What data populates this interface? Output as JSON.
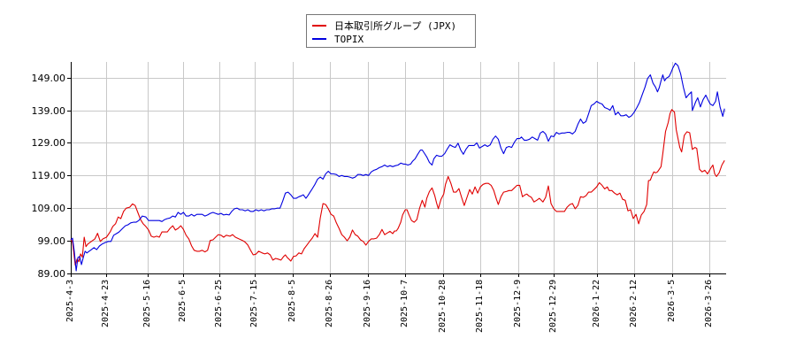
{
  "chart_data": {
    "type": "line",
    "title": "",
    "xlabel": "",
    "ylabel": "",
    "ylim": [
      89,
      153
    ],
    "grid": true,
    "legend_position": "top-center",
    "y_ticks": [
      "149.00",
      "139.00",
      "129.00",
      "119.00",
      "109.00",
      "99.00",
      "89.00"
    ],
    "y_tick_values": [
      149,
      139,
      129,
      119,
      109,
      99,
      89
    ],
    "x_ticks": [
      "2025-4-3",
      "2025-4-23",
      "2025-5-16",
      "2025-6-5",
      "2025-6-25",
      "2025-7-15",
      "2025-8-5",
      "2025-8-26",
      "2025-9-16",
      "2025-10-7",
      "2025-10-28",
      "2025-11-18",
      "2025-12-9",
      "2025-12-29",
      "2026-1-22",
      "2026-2-12",
      "2026-3-5",
      "2026-3-26"
    ],
    "x_tick_days": [
      0,
      20,
      43,
      63,
      83,
      103,
      124,
      145,
      166,
      187,
      208,
      229,
      250,
      270,
      294,
      315,
      336,
      357
    ],
    "x_range_days": [
      0,
      366
    ],
    "series": [
      {
        "name": "日本取引所グループ (JPX)",
        "color": "#e00000",
        "days": [
          0,
          1,
          2.5,
          3.5,
          4.5,
          5.5,
          6.5,
          7.5,
          8.5,
          9.5,
          11.5,
          13.5,
          15,
          16.5,
          18,
          20,
          22,
          23.5,
          25,
          26.5,
          28,
          29.5,
          31,
          33,
          34.5,
          36,
          37.5,
          39,
          40.5,
          42,
          43.5,
          45,
          46.5,
          48,
          49.5,
          51,
          52.5,
          54,
          55.5,
          57,
          58.5,
          60,
          61.5,
          63,
          64.5,
          66,
          67.5,
          69,
          70.5,
          72,
          73.5,
          75,
          76.5,
          78,
          79.5,
          81,
          82.5,
          84,
          85.5,
          87,
          89,
          90.5,
          92,
          94,
          96,
          97.5,
          99,
          100.5,
          102,
          103.5,
          105,
          107,
          108.5,
          110,
          111.5,
          113,
          114.5,
          116,
          117.5,
          119,
          120,
          121,
          122,
          123,
          124.5,
          126,
          127.5,
          129,
          130.5,
          132,
          133.5,
          135,
          136.5,
          138,
          139.5,
          141,
          142.5,
          144,
          145.5,
          147,
          148.5,
          150,
          151.5,
          153,
          154.5,
          156,
          157.5,
          159,
          160.5,
          162,
          163.5,
          165,
          166.5,
          168,
          169.5,
          171,
          172.5,
          174,
          175.5,
          177,
          178.5,
          180,
          181,
          182,
          183,
          184.5,
          185.5,
          187,
          188,
          189,
          190.5,
          192,
          193.5,
          195,
          196.5,
          198,
          199,
          200.5,
          202,
          203.5,
          204.5,
          205.5,
          207,
          208.5,
          209.5,
          211,
          212.5,
          214,
          215.5,
          217,
          218.5,
          220,
          221.5,
          223,
          224.5,
          226,
          227.5,
          229,
          230.5,
          232,
          233.5,
          235,
          236.5,
          238,
          239,
          240.5,
          242,
          243.5,
          245,
          246.5,
          248,
          249.5,
          251,
          252.5,
          254,
          255,
          256,
          257.5,
          259,
          260.5,
          262,
          264,
          265.5,
          267,
          268.5,
          270,
          271.5,
          273,
          274.5,
          276,
          277.5,
          279,
          280.5,
          282,
          283.5,
          285,
          286.5,
          288,
          289.5,
          291,
          292.5,
          294,
          295.5,
          297,
          298.5,
          300,
          301,
          302.5,
          304,
          305.5,
          307,
          308.5,
          310,
          311.5,
          313,
          314.5,
          316,
          317.5,
          319,
          320.5,
          322,
          323,
          324,
          325,
          326,
          327,
          328,
          329,
          330,
          331,
          332.5,
          334,
          335,
          336,
          337.5,
          338.5,
          340.5,
          341.5,
          343,
          344.5,
          346,
          347.5,
          349,
          350,
          351.5,
          353,
          354.5,
          356,
          358,
          359,
          360,
          361,
          362.5,
          364,
          365.5
        ],
        "values": [
          99.6,
          98.6,
          91.5,
          93.4,
          92.6,
          95.0,
          94.0,
          100.1,
          97.2,
          98.0,
          98.8,
          99.6,
          101.3,
          98.8,
          99.6,
          100.1,
          101.7,
          103.4,
          104.2,
          106.3,
          105.8,
          108.0,
          109.0,
          109.3,
          110.3,
          109.8,
          107.7,
          105.5,
          104.2,
          103.4,
          102.3,
          100.4,
          100.1,
          100.4,
          100.1,
          101.7,
          101.7,
          101.7,
          102.8,
          103.6,
          102.3,
          102.8,
          103.6,
          102.5,
          100.7,
          99.6,
          97.5,
          96.1,
          95.8,
          95.8,
          96.1,
          95.6,
          96.1,
          99.1,
          99.3,
          100.1,
          100.9,
          100.7,
          100.1,
          100.7,
          100.4,
          100.9,
          100.1,
          99.6,
          99.1,
          98.6,
          97.7,
          96.1,
          94.7,
          94.9,
          95.8,
          95.3,
          95.0,
          95.3,
          94.7,
          93.1,
          93.6,
          93.4,
          93.1,
          94.2,
          94.7,
          93.9,
          93.4,
          92.8,
          94.2,
          94.4,
          95.3,
          95.0,
          96.6,
          97.7,
          98.8,
          99.8,
          101.2,
          100.1,
          106.0,
          110.4,
          110.1,
          108.8,
          107.1,
          106.6,
          104.5,
          102.8,
          100.9,
          100.1,
          99.0,
          100.1,
          102.3,
          100.9,
          100.4,
          99.3,
          98.8,
          97.7,
          98.8,
          99.6,
          99.6,
          99.8,
          100.9,
          102.5,
          100.9,
          101.4,
          101.9,
          101.2,
          102.0,
          102.0,
          102.8,
          104.7,
          106.9,
          108.5,
          108.5,
          107.1,
          105.2,
          104.7,
          105.5,
          109.0,
          111.4,
          109.3,
          112.0,
          114.1,
          115.2,
          112.8,
          110.6,
          108.8,
          111.7,
          113.3,
          116.3,
          118.7,
          116.6,
          113.9,
          113.9,
          115.0,
          112.3,
          109.8,
          112.3,
          114.7,
          113.3,
          115.5,
          113.6,
          115.5,
          116.3,
          116.6,
          116.6,
          116.0,
          114.4,
          111.7,
          110.1,
          112.5,
          113.9,
          114.1,
          114.4,
          114.4,
          115.2,
          116.0,
          116.0,
          112.5,
          113.1,
          113.3,
          112.8,
          112.3,
          110.9,
          111.4,
          112.0,
          110.9,
          112.3,
          115.8,
          110.4,
          108.8,
          108.0,
          108.0,
          108.0,
          108.0,
          109.3,
          110.1,
          110.4,
          108.8,
          109.8,
          112.5,
          112.3,
          112.8,
          113.9,
          113.9,
          114.7,
          115.5,
          116.8,
          116.0,
          114.9,
          115.5,
          114.4,
          114.4,
          113.6,
          113.1,
          113.6,
          111.7,
          111.4,
          108.2,
          108.5,
          105.8,
          107.1,
          104.2,
          106.9,
          108.0,
          110.1,
          117.4,
          117.6,
          119.0,
          120.1,
          119.8,
          120.1,
          120.9,
          121.7,
          125.7,
          132.5,
          135.2,
          137.9,
          139.2,
          138.4,
          133.0,
          127.6,
          126.2,
          131.3,
          132.4,
          132.1,
          127.0,
          127.6,
          127.3,
          120.9,
          120.1,
          120.6,
          119.5,
          121.4,
          122.2,
          119.5,
          118.7,
          119.8,
          122.2,
          123.6,
          123.8,
          119.8,
          117.1,
          117.1,
          122.0,
          121.2,
          122.2
        ]
      },
      {
        "name": "TOPIX",
        "color": "#0000e0",
        "days": [
          0,
          1,
          2,
          3,
          4,
          5,
          6,
          7,
          8,
          9,
          11.5,
          13,
          14.5,
          16,
          17.5,
          19.5,
          21,
          22.5,
          24,
          25.5,
          27,
          29,
          30.5,
          32,
          33.5,
          35,
          36.5,
          38,
          40,
          42,
          43.5,
          45,
          46.5,
          48,
          49.5,
          51,
          52.5,
          54,
          55.5,
          57,
          58.5,
          60,
          61.5,
          63,
          64.5,
          66,
          67.5,
          69,
          70.5,
          72,
          73.5,
          75,
          76.5,
          78,
          79.5,
          81,
          82.5,
          84,
          85.5,
          87,
          88.5,
          90,
          91.5,
          93,
          94.5,
          96,
          97.5,
          99,
          100.5,
          102,
          103.5,
          105,
          106.5,
          108,
          109.5,
          111,
          112.5,
          114,
          115.5,
          117,
          118.5,
          120,
          121.5,
          123,
          124.5,
          126,
          127.5,
          129,
          130,
          131.5,
          132.5,
          134,
          135,
          136.5,
          138,
          139.5,
          141,
          142.5,
          144,
          145.5,
          147,
          148.5,
          150,
          151.5,
          153,
          154.5,
          156,
          157.5,
          159,
          160.5,
          162,
          163.5,
          165,
          166.5,
          168,
          169.5,
          171,
          172.5,
          174,
          175.5,
          177,
          178.5,
          180,
          181.5,
          183,
          184.5,
          186,
          187,
          188.5,
          190,
          191,
          192.5,
          194,
          195.5,
          196.5,
          197.5,
          199,
          200.5,
          202,
          203,
          204.5,
          206,
          207.5,
          209,
          210.5,
          212,
          213.5,
          215,
          216.5,
          218,
          219.5,
          221,
          222.5,
          224,
          225.5,
          227,
          228.5,
          230,
          231.5,
          233,
          234.5,
          236,
          237.5,
          239,
          240.5,
          242,
          243.5,
          245,
          246.5,
          248,
          249.5,
          251,
          252,
          253.5,
          255,
          256.5,
          258,
          259.5,
          261,
          262.5,
          264,
          265.5,
          267,
          268.5,
          270,
          271.5,
          273,
          274.5,
          276,
          277.5,
          279,
          280.5,
          282,
          283.5,
          285,
          286.5,
          288,
          289.5,
          291,
          292.5,
          294,
          295.5,
          297,
          298.5,
          300,
          301.5,
          303,
          304.5,
          306,
          307.5,
          309,
          310.5,
          312,
          313.5,
          315,
          316.5,
          318,
          319.5,
          321,
          322.5,
          324,
          325.5,
          327,
          328,
          329,
          330,
          331,
          332,
          333,
          334.5,
          335.5,
          336.5,
          338,
          339.5,
          341,
          342.5,
          344,
          345.5,
          347,
          347.5,
          349.5,
          350.5,
          352,
          353.5,
          355,
          356.5,
          357.5,
          359,
          360.5,
          361.5,
          363,
          364.5,
          365.5
        ],
        "values": [
          99.3,
          99.8,
          95.8,
          89.8,
          93.9,
          94.2,
          91.7,
          93.9,
          95.8,
          95.3,
          96.3,
          96.9,
          96.3,
          97.4,
          98.0,
          98.5,
          98.8,
          98.8,
          100.7,
          101.2,
          101.7,
          102.8,
          103.6,
          103.9,
          104.5,
          104.7,
          104.7,
          105.2,
          106.6,
          106.3,
          105.2,
          105.2,
          105.2,
          105.2,
          105.2,
          104.9,
          105.5,
          105.8,
          106.0,
          106.6,
          106.3,
          107.7,
          107.1,
          107.7,
          106.6,
          106.6,
          107.1,
          106.6,
          107.1,
          107.1,
          107.1,
          106.6,
          106.9,
          107.4,
          107.7,
          107.4,
          107.1,
          107.4,
          106.9,
          107.1,
          106.9,
          108.0,
          108.8,
          109.0,
          108.5,
          108.5,
          108.2,
          108.5,
          108.0,
          108.0,
          108.5,
          108.2,
          108.5,
          108.2,
          108.5,
          108.5,
          108.8,
          108.8,
          109.0,
          109.0,
          111.2,
          113.6,
          113.9,
          113.1,
          112.0,
          112.0,
          112.5,
          112.8,
          113.1,
          112.0,
          112.8,
          114.1,
          114.9,
          116.3,
          117.9,
          118.5,
          117.9,
          119.5,
          120.3,
          119.5,
          119.5,
          119.3,
          118.7,
          119.0,
          118.7,
          118.7,
          118.5,
          118.2,
          118.5,
          119.3,
          119.3,
          119.0,
          119.3,
          119.0,
          120.1,
          120.6,
          120.9,
          121.4,
          121.7,
          122.2,
          121.7,
          122.0,
          121.7,
          122.0,
          122.2,
          122.8,
          122.5,
          122.5,
          122.2,
          122.5,
          123.3,
          124.1,
          125.5,
          126.8,
          126.8,
          126.0,
          124.7,
          123.0,
          122.2,
          124.1,
          125.2,
          124.9,
          124.9,
          125.7,
          127.1,
          128.4,
          127.9,
          127.6,
          128.9,
          126.8,
          125.5,
          127.1,
          128.2,
          128.2,
          128.2,
          129.0,
          127.4,
          127.9,
          128.4,
          127.9,
          128.4,
          130.1,
          131.1,
          130.1,
          127.4,
          125.7,
          127.6,
          127.9,
          127.6,
          129.2,
          130.3,
          130.3,
          130.8,
          129.8,
          129.8,
          130.1,
          130.8,
          130.3,
          129.8,
          132.0,
          132.5,
          131.7,
          129.5,
          131.1,
          130.9,
          132.2,
          131.7,
          132.0,
          132.0,
          132.2,
          132.2,
          131.7,
          132.5,
          134.7,
          136.3,
          135.0,
          135.5,
          137.9,
          140.4,
          140.9,
          141.7,
          141.2,
          140.9,
          139.8,
          139.5,
          139.0,
          140.4,
          137.6,
          138.4,
          137.3,
          137.3,
          137.6,
          136.8,
          137.3,
          138.4,
          139.8,
          141.4,
          143.8,
          146.0,
          148.7,
          149.8,
          147.3,
          146.0,
          144.6,
          145.9,
          148.0,
          149.8,
          148.0,
          148.8,
          149.3,
          150.4,
          151.8,
          153.4,
          152.6,
          150.1,
          146.0,
          142.8,
          143.8,
          144.6,
          138.9,
          141.7,
          142.8,
          140.0,
          142.2,
          143.6,
          141.9,
          140.9,
          140.4,
          141.7,
          144.6,
          140.0,
          137.1,
          139.5,
          142.0,
          142.0,
          142.0,
          140.1,
          138.2,
          143.0,
          140.6,
          141.7,
          141.7
        ]
      }
    ]
  },
  "legend": {
    "items": [
      {
        "label": "日本取引所グループ (JPX)",
        "color": "#e00000"
      },
      {
        "label": "TOPIX",
        "color": "#0000e0"
      }
    ]
  }
}
